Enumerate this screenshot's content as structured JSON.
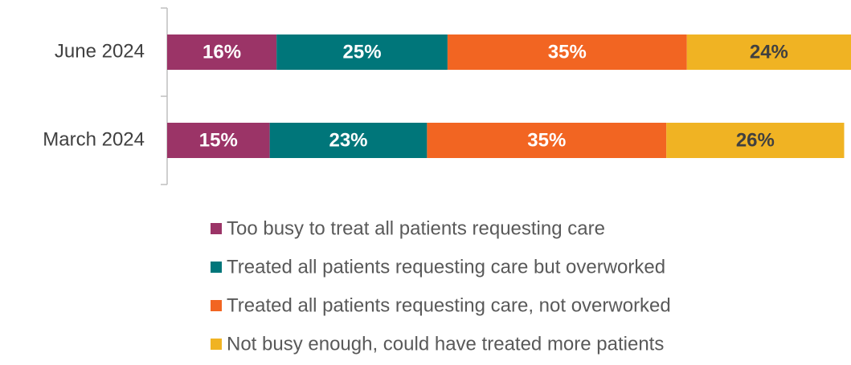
{
  "chart_data": {
    "type": "stacked_bar_horizontal",
    "categories": [
      "June 2024",
      "March 2024"
    ],
    "xlim": [
      0,
      100
    ],
    "series": [
      {
        "name": "Too busy to treat all patients requesting care",
        "color": "#9b3467",
        "label_color": "#ffffff",
        "values": [
          16,
          15
        ],
        "value_labels": [
          "16%",
          "15%"
        ]
      },
      {
        "name": "Treated all patients requesting care but overworked",
        "color": "#00767a",
        "label_color": "#ffffff",
        "values": [
          25,
          23
        ],
        "value_labels": [
          "25%",
          "23%"
        ]
      },
      {
        "name": "Treated all patients requesting care, not overworked",
        "color": "#f26522",
        "label_color": "#ffffff",
        "values": [
          35,
          35
        ],
        "value_labels": [
          "35%",
          "35%"
        ]
      },
      {
        "name": "Not busy enough, could have treated more patients",
        "color": "#f0b323",
        "label_color": "#404040",
        "values": [
          24,
          26
        ],
        "value_labels": [
          "24%",
          "26%"
        ]
      }
    ],
    "legend": "bottom"
  }
}
